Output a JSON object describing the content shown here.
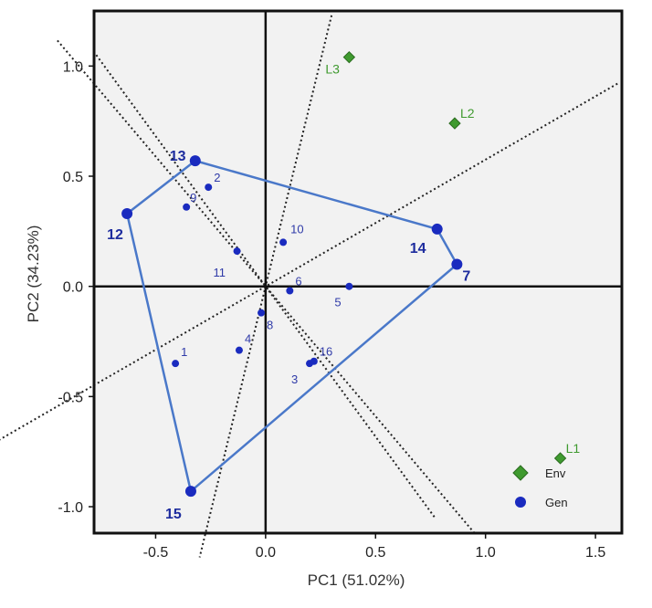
{
  "chart_data": {
    "type": "scatter",
    "xlabel": "PC1 (51.02%)",
    "ylabel": "PC2 (34.23%)",
    "xlim": [
      -0.78,
      1.62
    ],
    "ylim": [
      -1.12,
      1.25
    ],
    "x_ticks": [
      -0.5,
      0.0,
      0.5,
      1.0,
      1.5
    ],
    "y_ticks": [
      -1.0,
      -0.5,
      0.0,
      0.5,
      1.0
    ],
    "x_tick_labels": [
      "-0.5",
      "0.0",
      "0.5",
      "1.0",
      "1.5"
    ],
    "y_tick_labels": [
      "-1.0",
      "-0.5",
      "0.0",
      "0.5",
      "1.0"
    ],
    "grid": false,
    "legend": {
      "placement": "bottom-right",
      "entries": [
        {
          "label": "Env",
          "marker": "diamond",
          "color": "#3f9a2f"
        },
        {
          "label": "Gen",
          "marker": "circle",
          "color": "#1a2bbf"
        }
      ]
    },
    "series": [
      {
        "name": "Gen",
        "marker": "circle",
        "color": "#1a2bbf",
        "points": [
          {
            "label": "1",
            "x": -0.41,
            "y": -0.35,
            "vertex": false
          },
          {
            "label": "2",
            "x": -0.26,
            "y": 0.45,
            "vertex": false
          },
          {
            "label": "3",
            "x": 0.2,
            "y": -0.35,
            "vertex": false
          },
          {
            "label": "4",
            "x": -0.12,
            "y": -0.29,
            "vertex": false
          },
          {
            "label": "5",
            "x": 0.38,
            "y": 0.0,
            "vertex": false
          },
          {
            "label": "6",
            "x": 0.11,
            "y": -0.02,
            "vertex": false
          },
          {
            "label": "7",
            "x": 0.87,
            "y": 0.1,
            "vertex": true
          },
          {
            "label": "8",
            "x": -0.02,
            "y": -0.12,
            "vertex": false
          },
          {
            "label": "9",
            "x": -0.36,
            "y": 0.36,
            "vertex": false
          },
          {
            "label": "10",
            "x": 0.08,
            "y": 0.2,
            "vertex": false
          },
          {
            "label": "11",
            "x": -0.13,
            "y": 0.16,
            "vertex": false
          },
          {
            "label": "12",
            "x": -0.63,
            "y": 0.33,
            "vertex": true
          },
          {
            "label": "13",
            "x": -0.32,
            "y": 0.57,
            "vertex": true
          },
          {
            "label": "14",
            "x": 0.78,
            "y": 0.26,
            "vertex": true
          },
          {
            "label": "15",
            "x": -0.34,
            "y": -0.93,
            "vertex": true
          },
          {
            "label": "16",
            "x": 0.22,
            "y": -0.34,
            "vertex": false
          }
        ]
      },
      {
        "name": "Env",
        "marker": "diamond",
        "color": "#3f9a2f",
        "points": [
          {
            "label": "L1",
            "x": 1.34,
            "y": -0.78
          },
          {
            "label": "L2",
            "x": 0.86,
            "y": 0.74
          },
          {
            "label": "L3",
            "x": 0.38,
            "y": 1.04
          }
        ]
      }
    ],
    "polygon": [
      "13",
      "14",
      "7",
      "15",
      "12"
    ],
    "sector_lines_through_origin": [
      {
        "x": 1.6,
        "y": 0.92
      },
      {
        "x": 0.3,
        "y": 1.23
      },
      {
        "x": -0.77,
        "y": 1.05
      },
      {
        "x": 0.95,
        "y": -1.12
      }
    ]
  }
}
